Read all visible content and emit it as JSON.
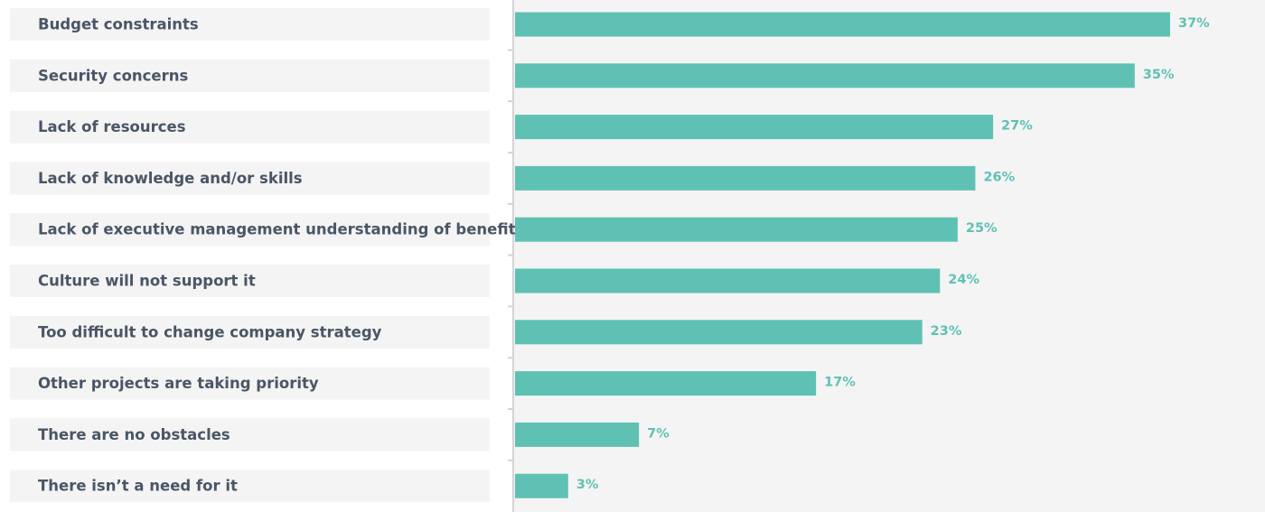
{
  "chart_data": {
    "type": "bar",
    "orientation": "horizontal",
    "categories": [
      "Budget constraints",
      "Security concerns",
      "Lack of resources",
      "Lack of knowledge and/or skills",
      "Lack of executive management understanding of benefits",
      "Culture will not support it",
      "Too difficult to change company strategy",
      "Other projects are taking priority",
      "There are no obstacles",
      "There isn’t a need for it"
    ],
    "values": [
      37,
      35,
      27,
      26,
      25,
      24,
      23,
      17,
      7,
      3
    ],
    "value_labels": [
      "37%",
      "35%",
      "27%",
      "26%",
      "25%",
      "24%",
      "23%",
      "17%",
      "7%",
      "3%"
    ],
    "unit": "%",
    "title": "",
    "xlabel": "",
    "ylabel": "",
    "xlim": [
      0,
      37
    ],
    "grid": false,
    "legend": "none"
  },
  "colors": {
    "bar": "#5fc1b3",
    "value_label": "#5fc1b3",
    "category_label": "#4a5666",
    "label_panel": "#f4f4f4",
    "plot_background": "#f4f4f4",
    "axis_line": "#d4d4d4"
  }
}
